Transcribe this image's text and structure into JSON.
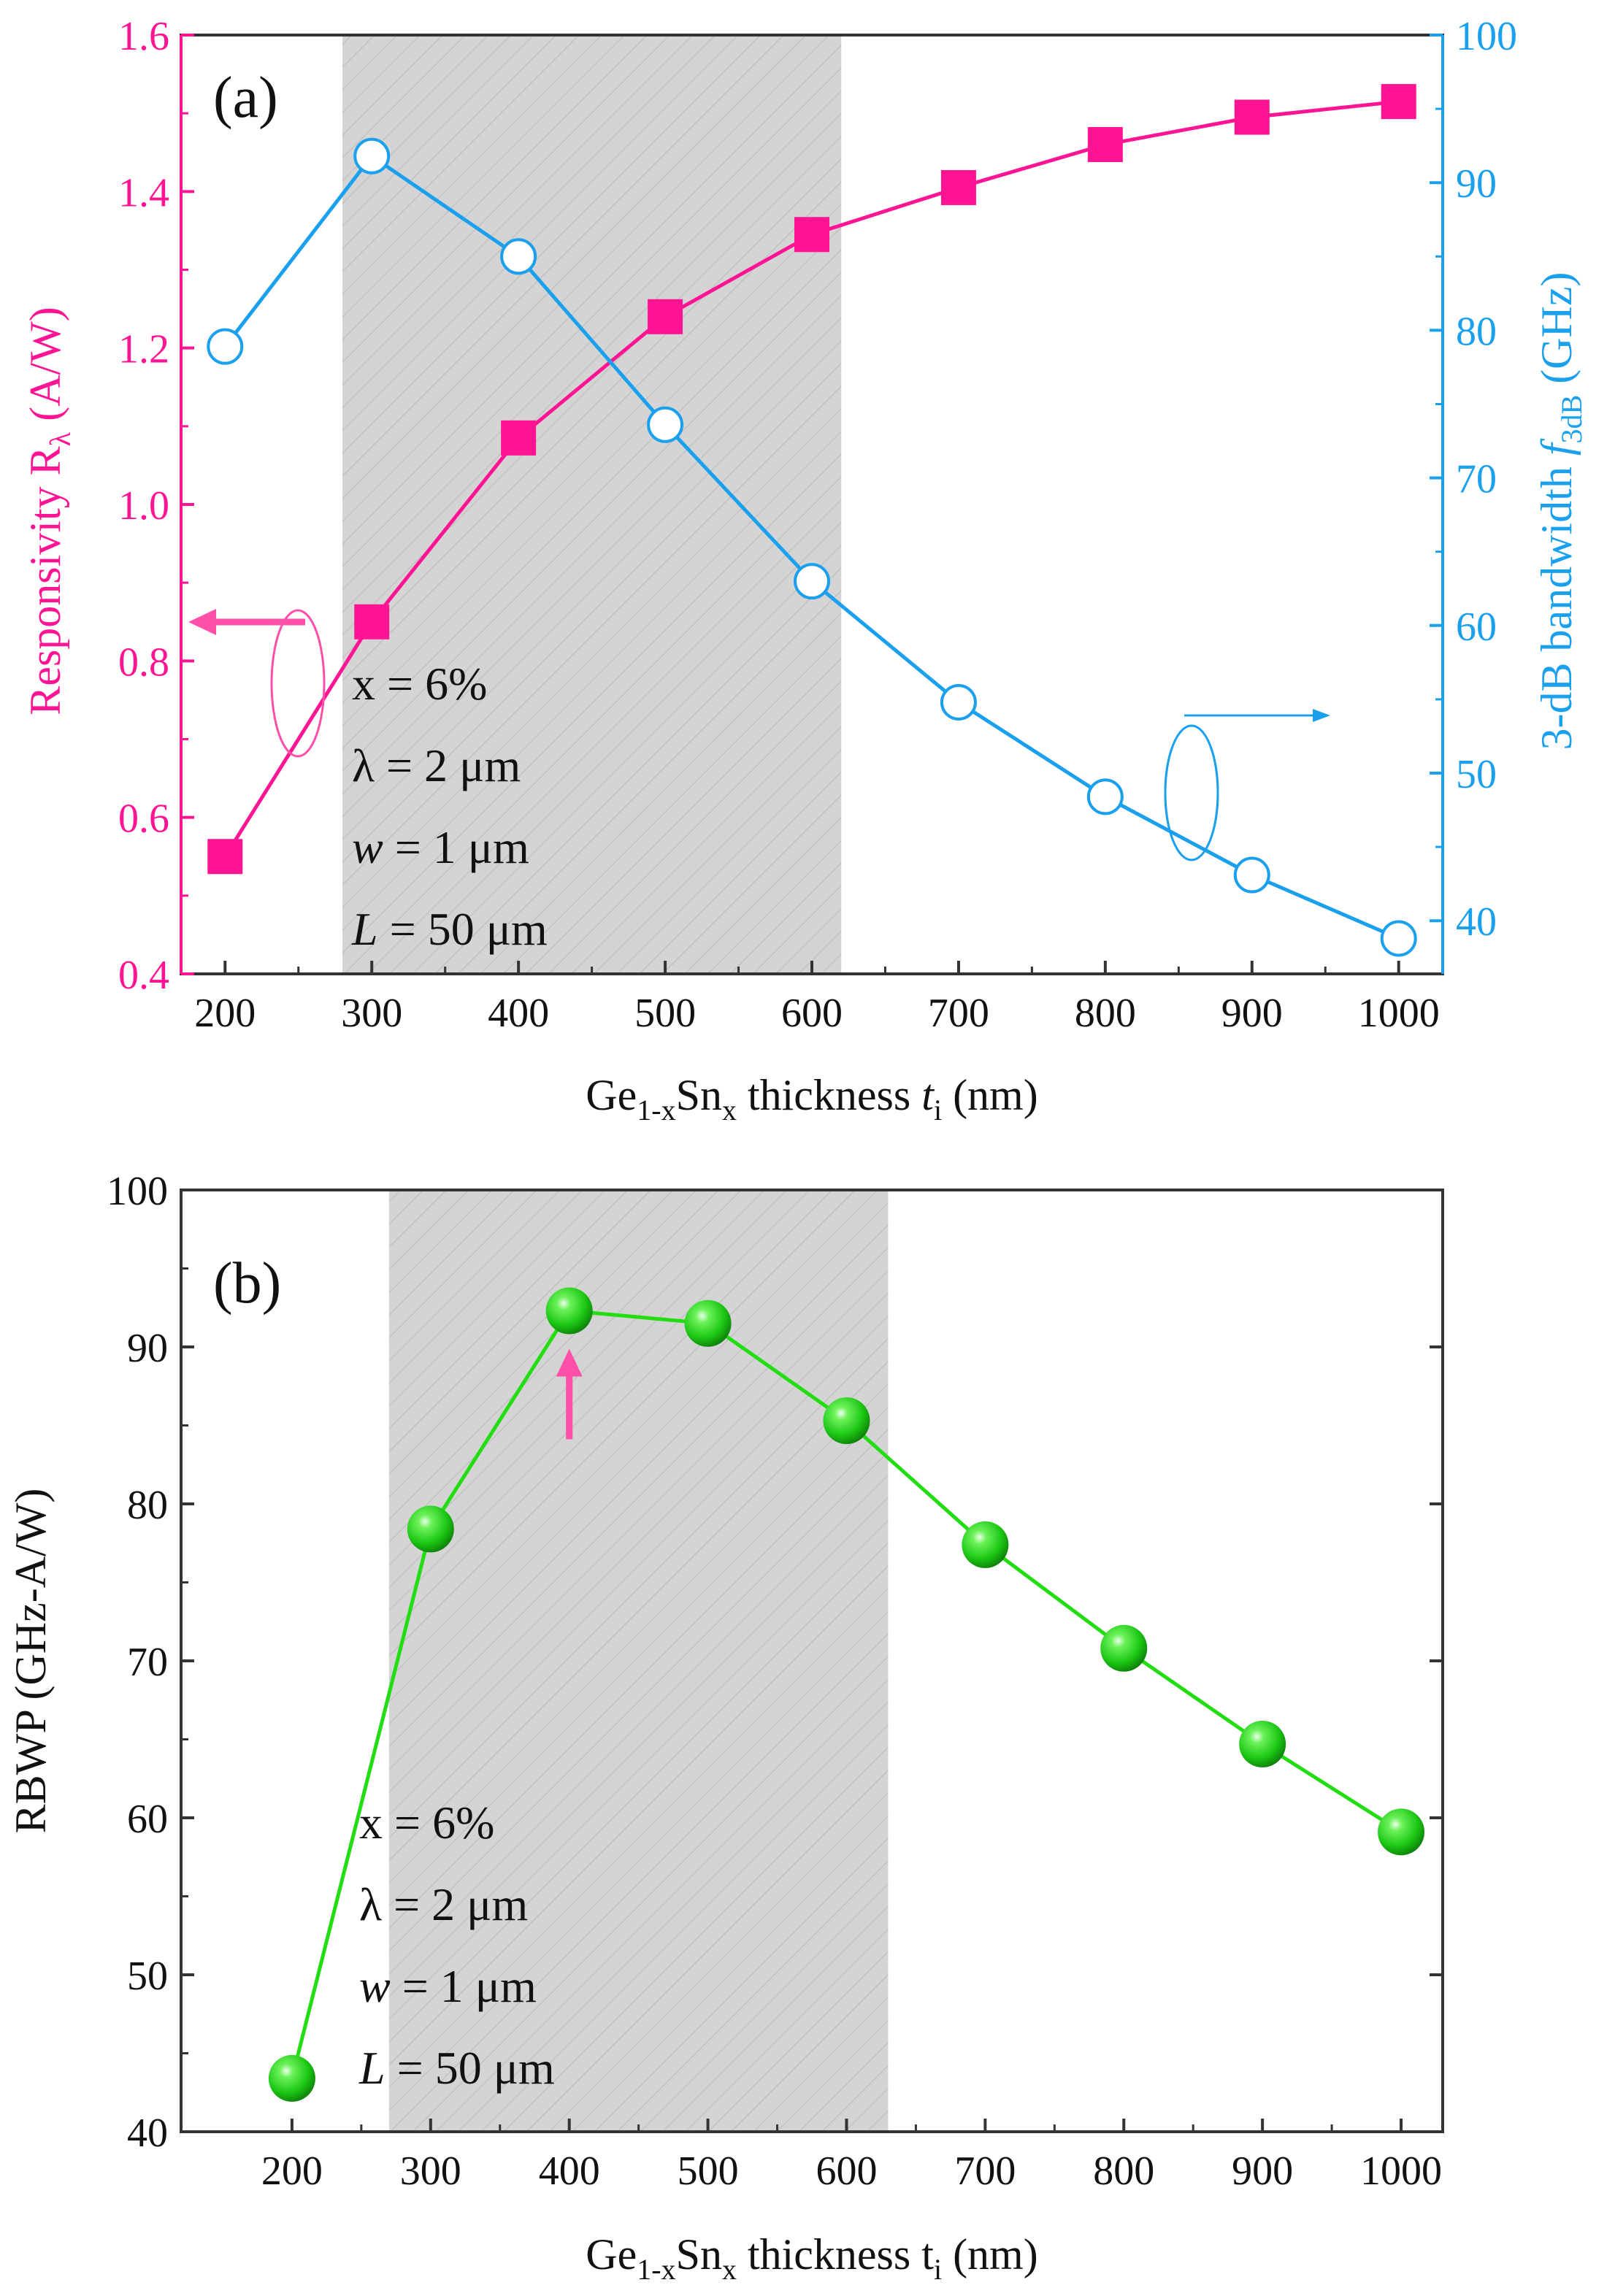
{
  "chart_data": [
    {
      "panel_label": "(a)",
      "type": "line",
      "x": [
        200,
        300,
        400,
        500,
        600,
        700,
        800,
        900,
        1000
      ],
      "xlim": [
        170,
        1030
      ],
      "xticks": [
        200,
        300,
        400,
        500,
        600,
        700,
        800,
        900,
        1000
      ],
      "xlabel": {
        "p1": "Ge",
        "s1": "1-x",
        "p2": "Sn",
        "s2": "x",
        "p3": " thickness ",
        "p4": "t",
        "s4": "i",
        "p5": " (nm)"
      },
      "shaded_x_range": [
        280,
        620
      ],
      "ylabel_left": {
        "p1": "Responsivity R",
        "s1": "λ",
        "p2": " (A/W)"
      },
      "ylabel_right": {
        "p1": "3-dB bandwidth ",
        "p2": "f",
        "s2": "3dB",
        "p3": " (GHz)"
      },
      "y_left_lim": [
        0.4,
        1.6
      ],
      "y_left_ticks": [
        0.4,
        0.6,
        0.8,
        1.0,
        1.2,
        1.4,
        1.6
      ],
      "y_right_lim": [
        36.4,
        100
      ],
      "y_right_ticks": [
        40,
        50,
        60,
        70,
        80,
        90,
        100
      ],
      "series": [
        {
          "name": "Responsivity",
          "axis": "left",
          "color": "#ff1493",
          "marker": "filled-square",
          "values": [
            0.55,
            0.85,
            1.085,
            1.24,
            1.345,
            1.405,
            1.46,
            1.495,
            1.515
          ]
        },
        {
          "name": "3-dB bandwidth",
          "axis": "right",
          "color": "#1aa0ec",
          "marker": "open-circle",
          "values": [
            78.9,
            91.8,
            85.0,
            73.6,
            63.0,
            54.8,
            48.4,
            43.1,
            38.8
          ]
        }
      ],
      "annotation": [
        "x = 6%",
        "λ = 2 μm",
        "w = 1 μm",
        "L = 50 μm"
      ]
    },
    {
      "panel_label": "(b)",
      "type": "line",
      "x": [
        200,
        300,
        400,
        500,
        600,
        700,
        800,
        900,
        1000
      ],
      "xlim": [
        120,
        1030
      ],
      "xticks": [
        200,
        300,
        400,
        500,
        600,
        700,
        800,
        900,
        1000
      ],
      "xlabel": {
        "p1": "Ge",
        "s1": "1-x",
        "p2": "Sn",
        "s2": "x",
        "p3": " thickness t",
        "s3": "i",
        "p4": " (nm)"
      },
      "shaded_x_range": [
        270,
        630
      ],
      "ylabel": "RBWP (GHz-A/W)",
      "ylim": [
        40,
        100
      ],
      "yticks": [
        40,
        50,
        60,
        70,
        80,
        90,
        100
      ],
      "series": [
        {
          "name": "RBWP",
          "color": "#22dd11",
          "marker": "sphere",
          "values": [
            43.4,
            78.4,
            92.3,
            91.5,
            85.3,
            77.4,
            70.8,
            64.7,
            59.1
          ]
        }
      ],
      "peak_arrow_x": 400,
      "annotation": [
        "x = 6%",
        "λ = 2 μm",
        "w = 1 μm",
        "L = 50 μm"
      ]
    }
  ]
}
